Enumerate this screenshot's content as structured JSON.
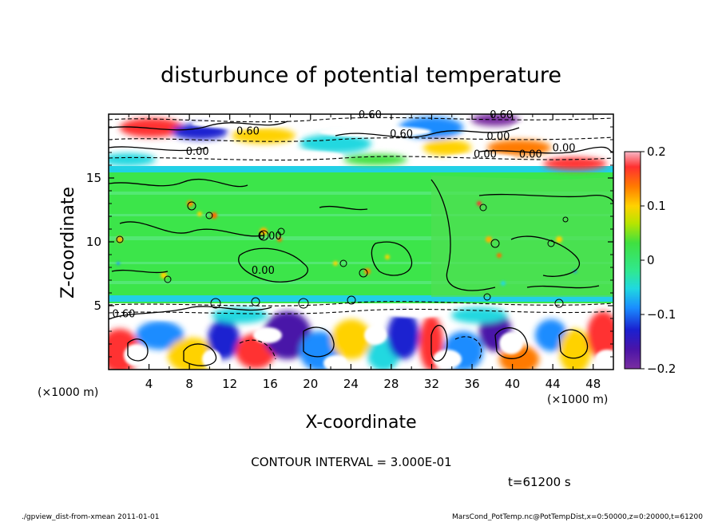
{
  "chart_data": {
    "type": "heatmap",
    "title": "disturbunce of potential temperature",
    "xlabel": "X-coordinate",
    "ylabel": "Z-coordinate",
    "x_unit": "(×1000 m)",
    "y_unit": "(×1000 m)",
    "xlim": [
      0,
      50
    ],
    "ylim": [
      0,
      20
    ],
    "x_ticks": [
      "4",
      "8",
      "12",
      "16",
      "20",
      "24",
      "28",
      "32",
      "36",
      "40",
      "44",
      "48"
    ],
    "y_ticks": [
      "5",
      "10",
      "15"
    ],
    "colorbar": {
      "range": [
        -0.2,
        0.2
      ],
      "tick_labels": [
        "0.2",
        "0.1",
        "0",
        "−0.1",
        "−0.2"
      ],
      "tick_values": [
        0.2,
        0.1,
        0,
        -0.1,
        -0.2
      ]
    },
    "contour_labels": [
      "0.60",
      "0.60",
      "0.60",
      "0.60",
      "0.00",
      "0.00",
      "0.00",
      "0.00",
      "0.60",
      "0.00",
      "0.00",
      "0.00"
    ],
    "contour_interval": "CONTOUR INTERVAL = 3.000E-01",
    "time": "t=61200 s",
    "legend": "none"
  },
  "footer": {
    "left": "./gpview_dist-from-xmean  2011-01-01",
    "right": "MarsCond_PotTemp.nc@PotTempDist,x=0:50000,z=0:20000,t=61200"
  }
}
